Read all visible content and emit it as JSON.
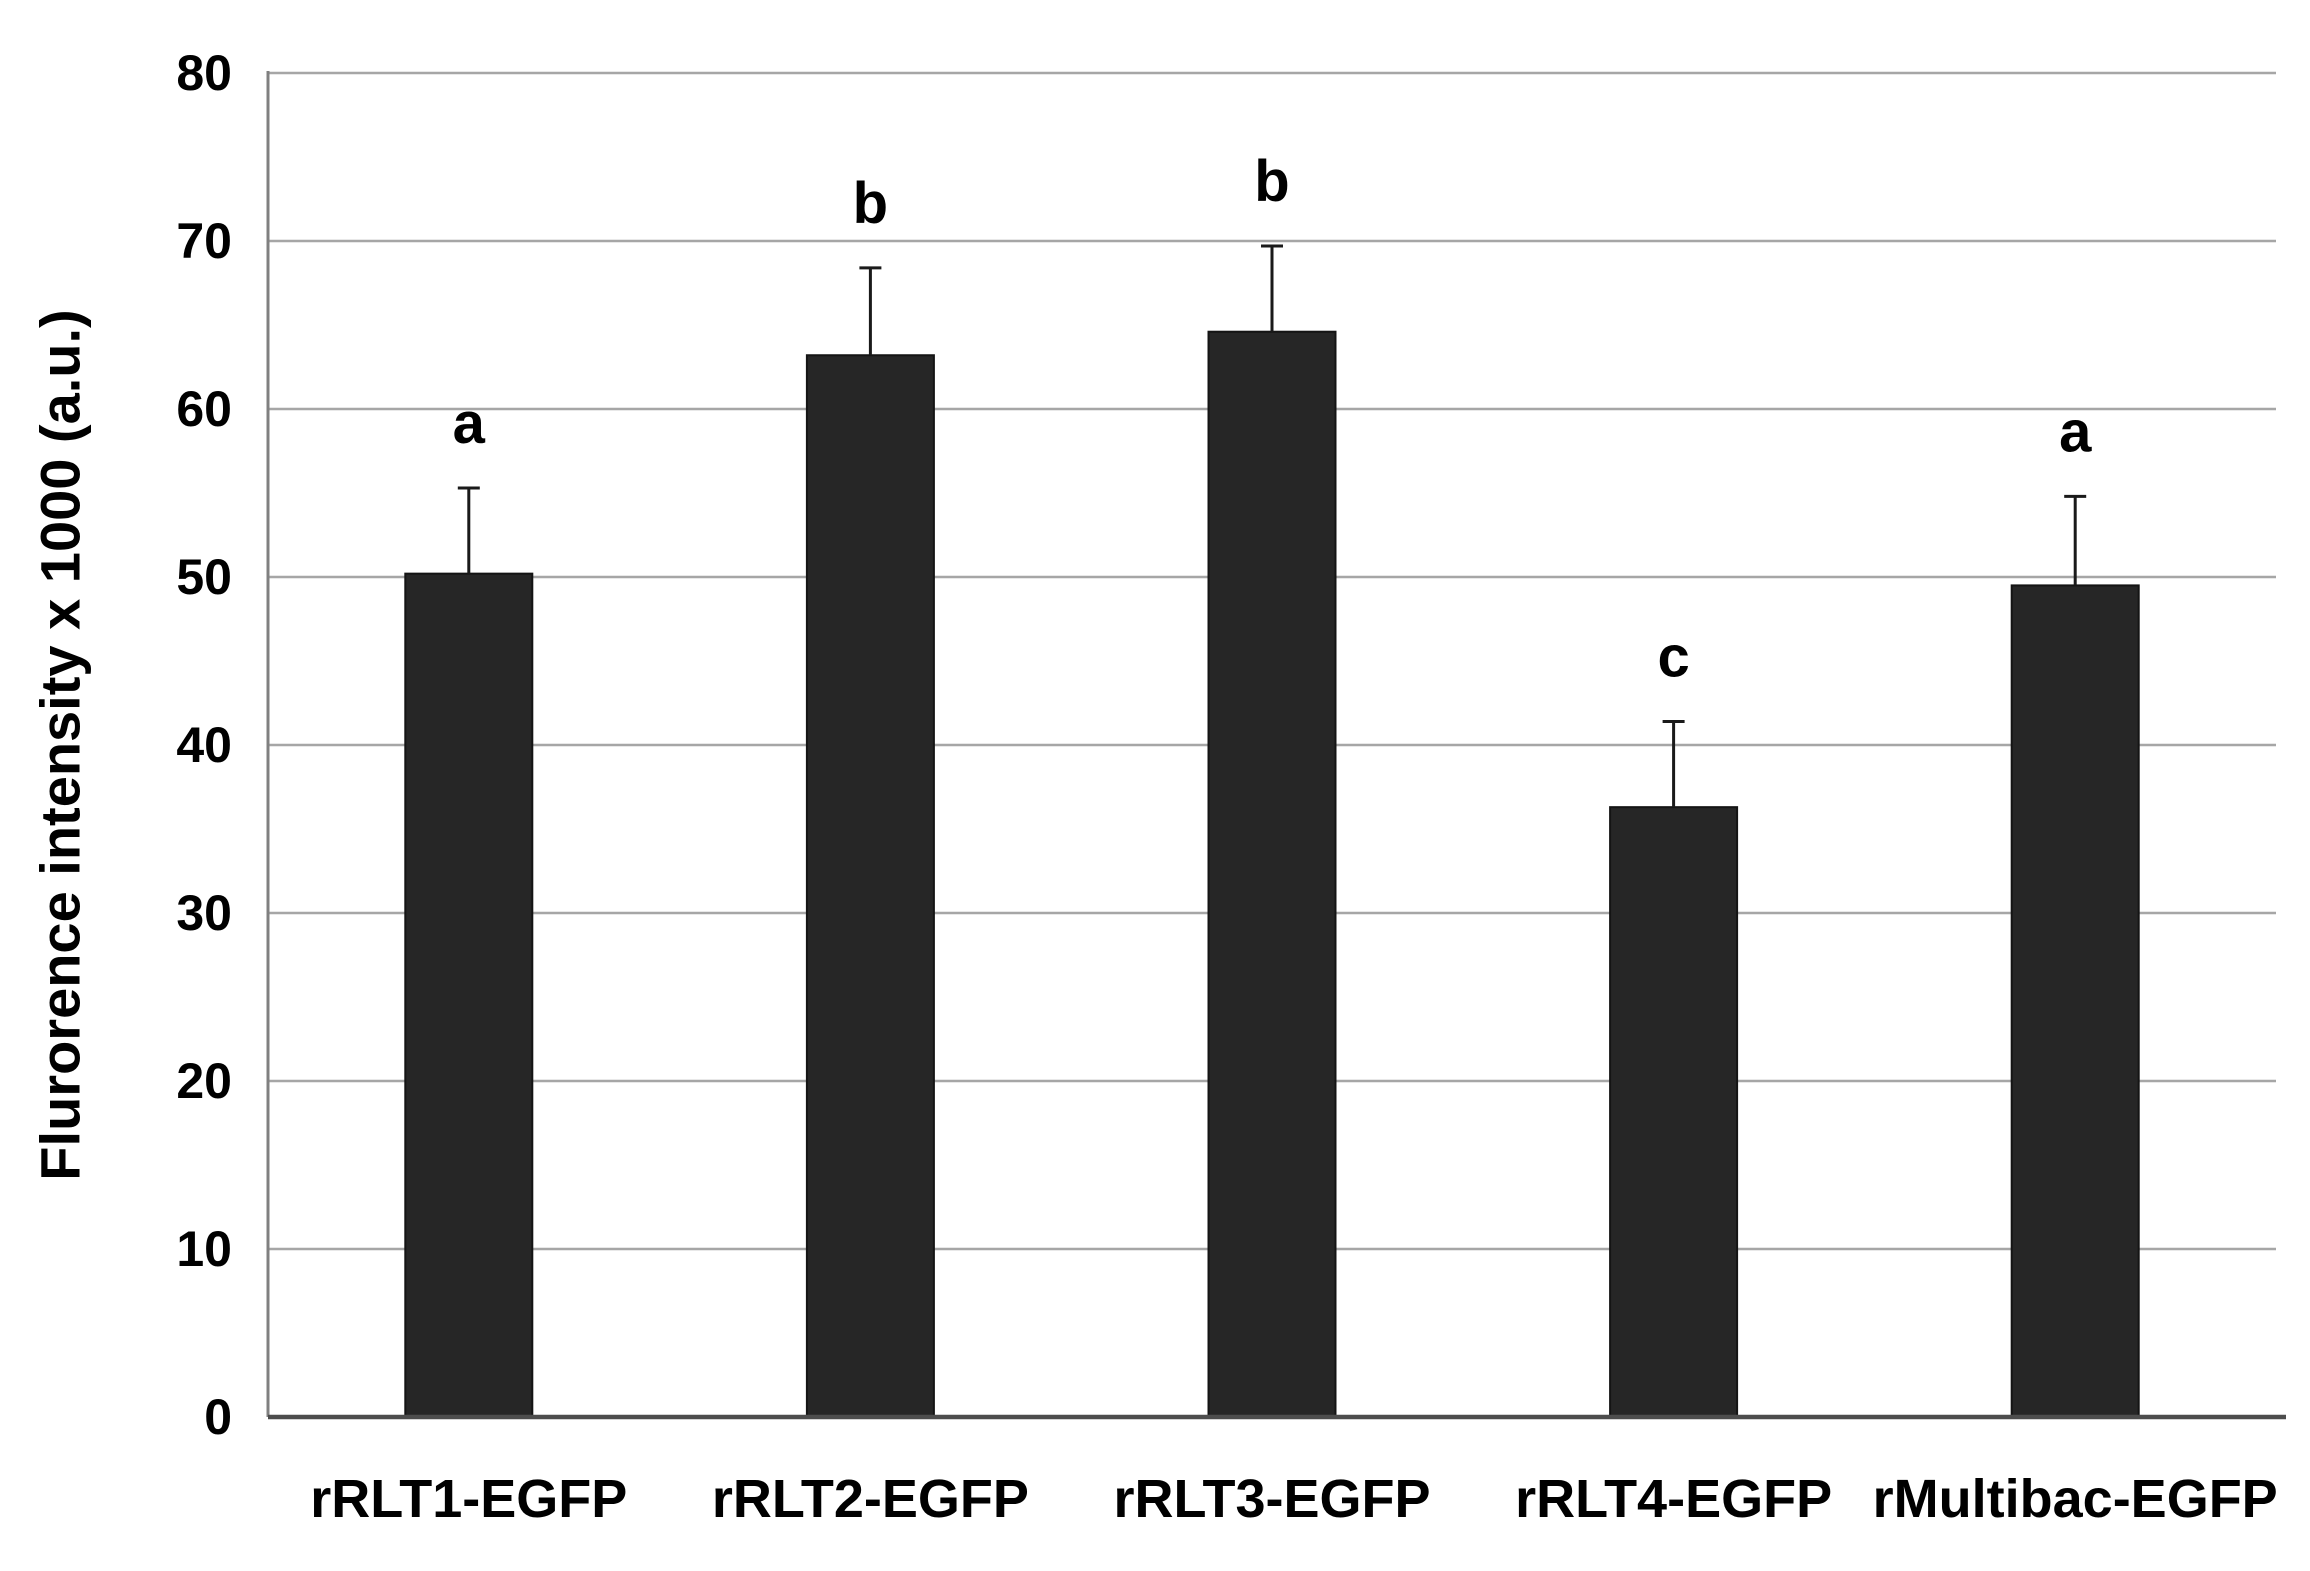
{
  "chart_data": {
    "type": "bar",
    "title": "",
    "categories": [
      "rRLT1-EGFP",
      "rRLT2-EGFP",
      "rRLT3-EGFP",
      "rRLT4-EGFP",
      "rMultibac-EGFP"
    ],
    "values": [
      50.2,
      63.2,
      64.6,
      36.3,
      49.5
    ],
    "errors_upper": [
      5.1,
      5.2,
      5.1,
      5.1,
      5.3
    ],
    "significance_letters": [
      "a",
      "b",
      "b",
      "c",
      "a"
    ],
    "xlabel": "",
    "ylabel": "Flurorence intensity x 1000 (a.u.)",
    "ylim": [
      0,
      80
    ],
    "yticks": [
      0,
      10,
      20,
      30,
      40,
      50,
      60,
      70,
      80
    ],
    "legend": "none",
    "grid": "horizontal",
    "colors": {
      "bar_fill": "#262626",
      "bar_stroke": "#141414",
      "gridline": "#a6a6a6",
      "y_axis_line": "#808080",
      "x_axis_line": "#4d4d4d",
      "error_bar": "#1a1a1a",
      "text": "#000000",
      "background": "#ffffff"
    }
  }
}
